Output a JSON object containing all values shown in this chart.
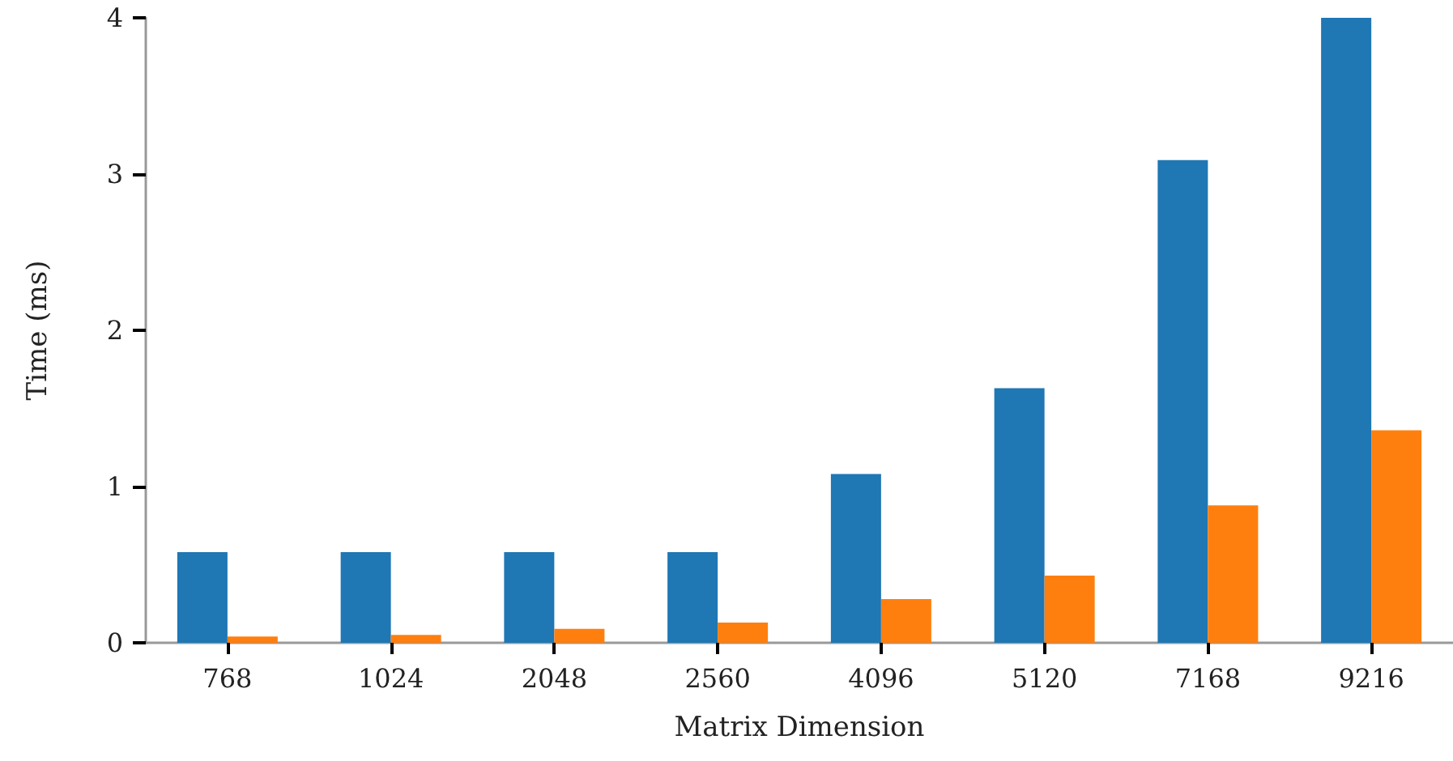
{
  "chart_data": {
    "type": "bar",
    "xlabel": "Matrix Dimension",
    "ylabel": "Time (ms)",
    "categories": [
      "768",
      "1024",
      "2048",
      "2560",
      "4096",
      "5120",
      "7168",
      "9216"
    ],
    "series": [
      {
        "color": "#1f77b4",
        "values": [
          0.58,
          0.58,
          0.58,
          0.58,
          1.08,
          1.63,
          3.09,
          4.0
        ]
      },
      {
        "color": "#ff7f0e",
        "values": [
          0.04,
          0.05,
          0.09,
          0.13,
          0.28,
          0.43,
          0.88,
          1.36
        ]
      }
    ],
    "ylim": [
      0,
      4
    ],
    "yticks": [
      0,
      1,
      2,
      3,
      4
    ],
    "grid": false
  }
}
